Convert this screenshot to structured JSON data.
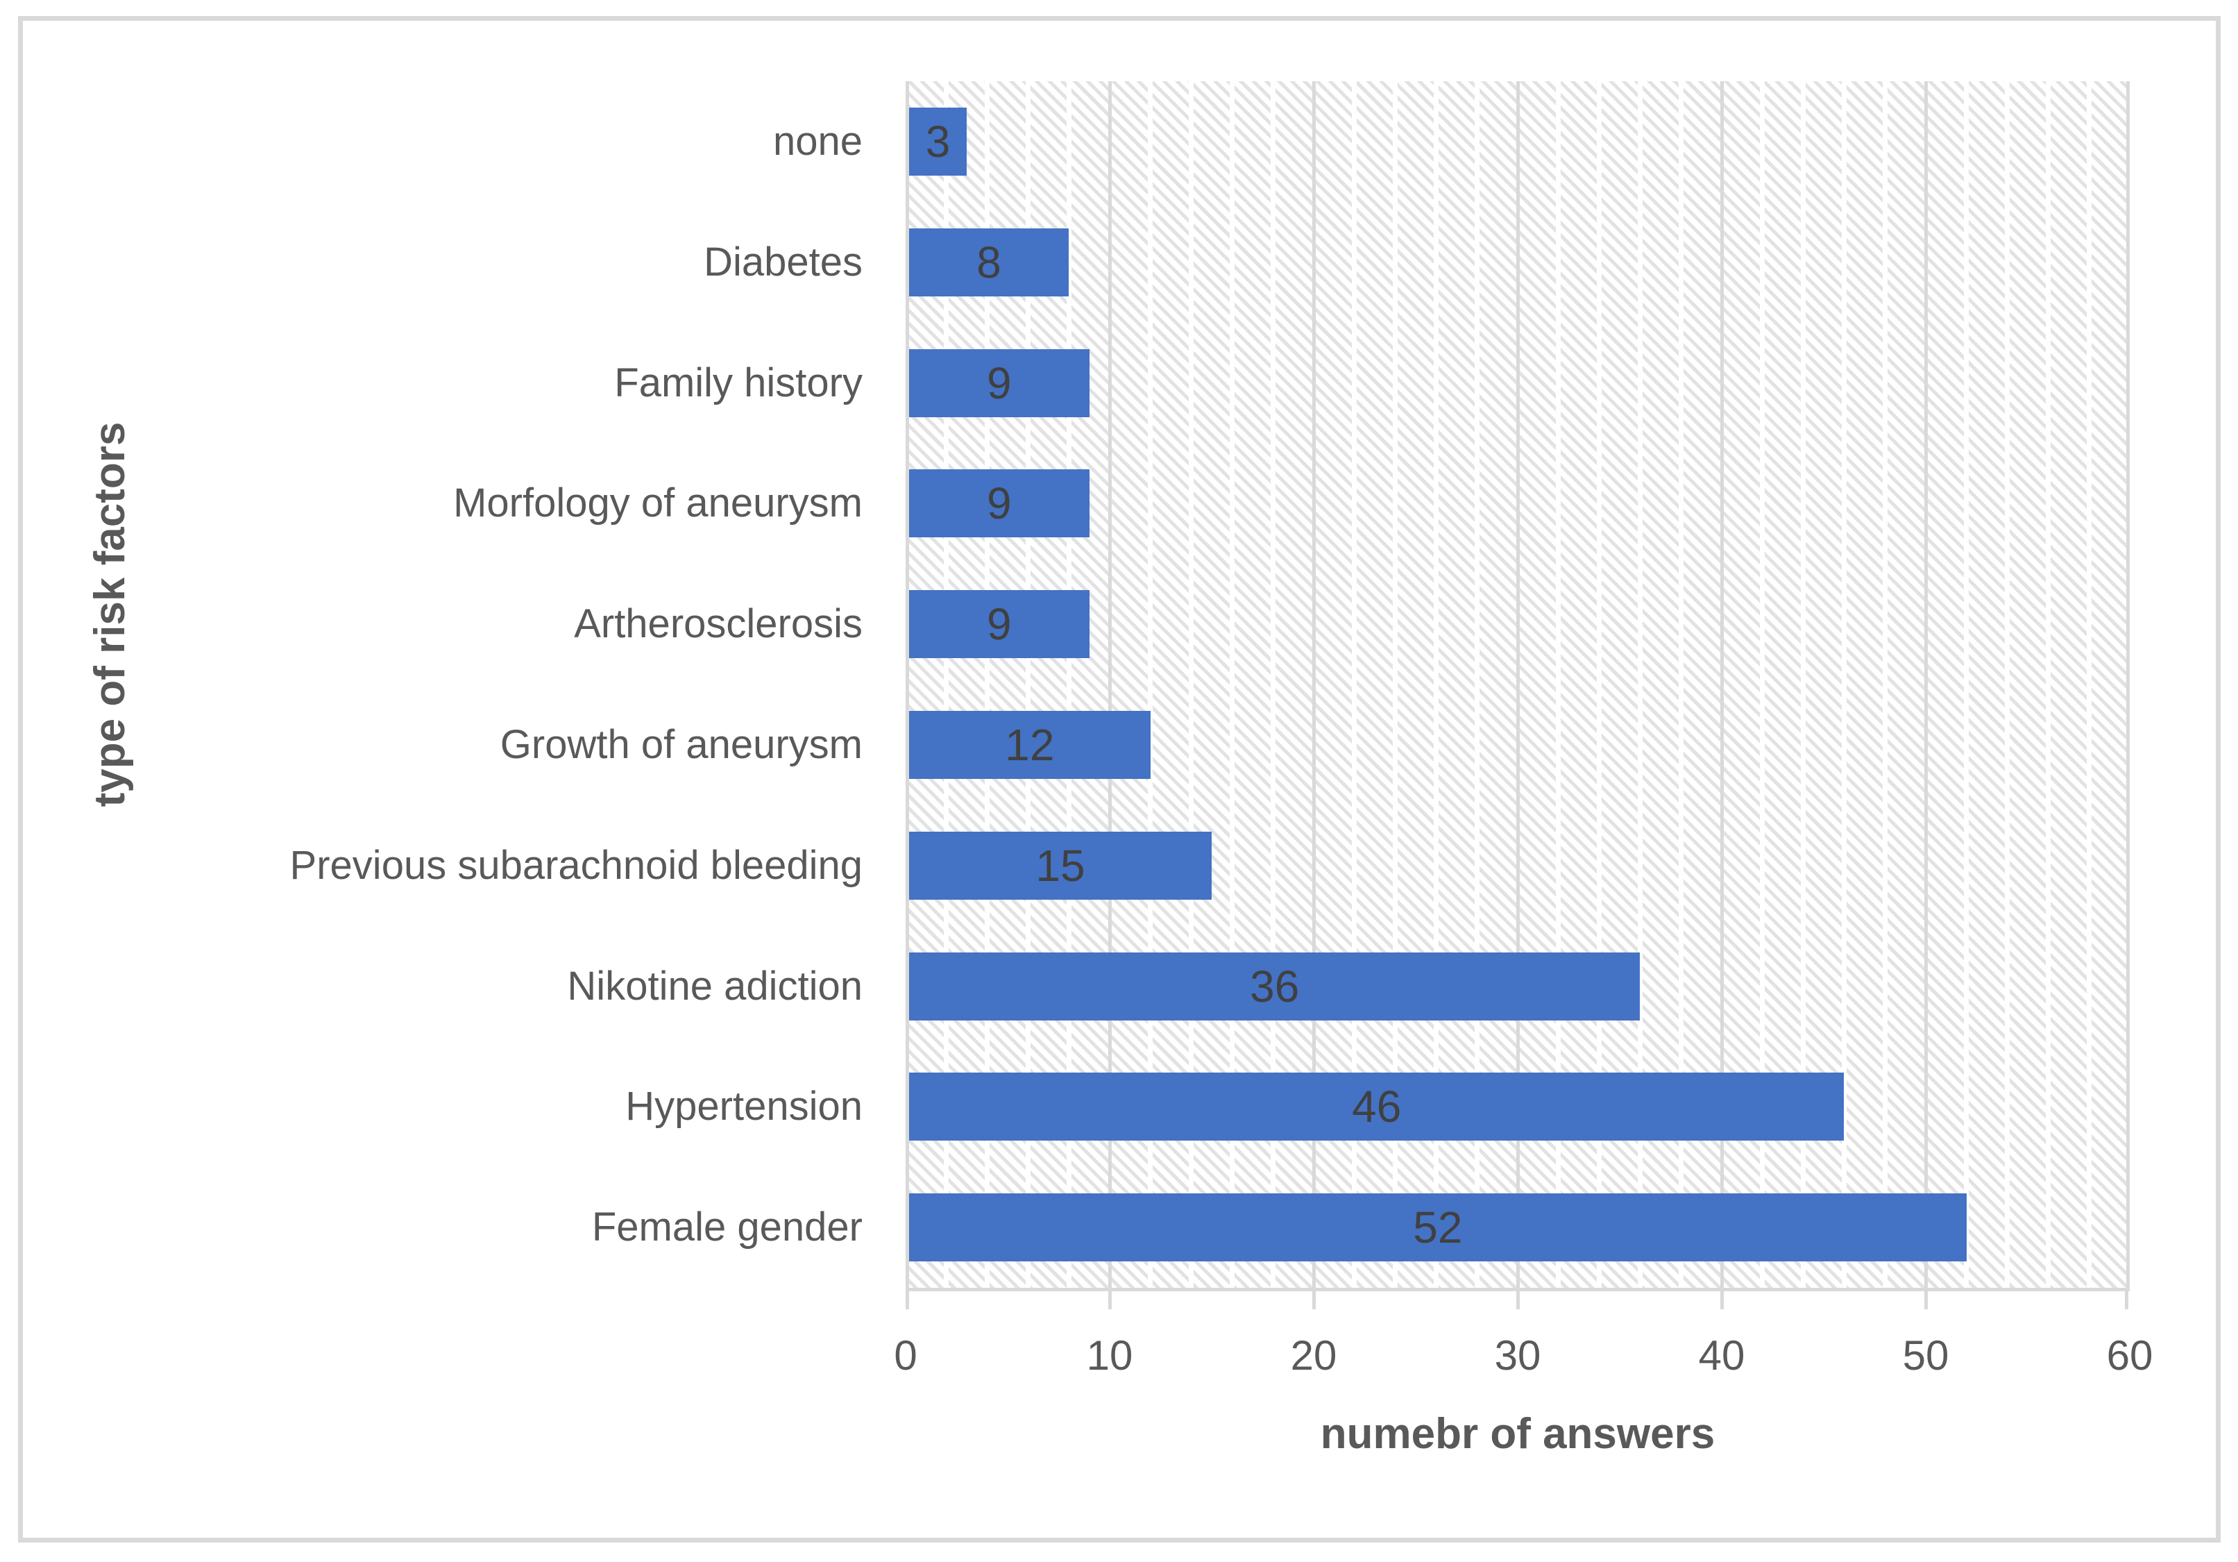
{
  "frame": {
    "border_color": "#d9d9d9",
    "background": "#ffffff"
  },
  "chart_data": {
    "type": "bar",
    "orientation": "horizontal",
    "title": "",
    "categories": [
      "none",
      "Diabetes",
      "Family history",
      "Morfology of aneurysm",
      "Artherosclerosis",
      "Growth of aneurysm",
      "Previous subarachnoid bleeding",
      "Nikotine adiction",
      "Hypertension",
      "Female gender"
    ],
    "values": [
      3,
      8,
      9,
      9,
      9,
      12,
      15,
      36,
      46,
      52
    ],
    "xlabel": "numebr of answers",
    "ylabel": "type of risk factors",
    "xlim": [
      0,
      60
    ],
    "x_ticks": [
      0,
      10,
      20,
      30,
      40,
      50,
      60
    ],
    "major_step": 10,
    "minor_step": 2,
    "grid": "vertical major and minor gridlines on",
    "legend": "none",
    "data_labels": "inside center",
    "bar_color": "#4472C4",
    "data_label_color": "#404040",
    "axis_text_color": "#595959",
    "major_gridline_color": "#d9d9d9",
    "minor_gridline_color": "#ffffff",
    "axis_line_color": "#d9d9d9",
    "plot_pattern_color": "#e2e2e2",
    "plot_pattern": "light diagonal hatch"
  }
}
